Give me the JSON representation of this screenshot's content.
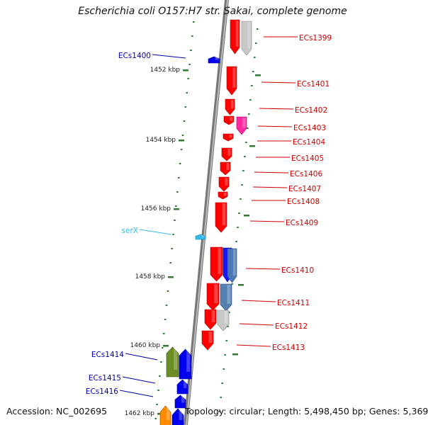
{
  "title": "Escherichia coli O157:H7 str. Sakai, complete genome",
  "footer": {
    "accession": "Accession: NC_002695",
    "summary": "Topology: circular; Length: 5,498,450 bp; Genes: 5,369"
  },
  "colors": {
    "backbone": "#8a8a8a",
    "tick": "#2e7d32",
    "cds_forward": "#ff0000",
    "cds_reverse": "#0000ee",
    "gc": "#2e7d32"
  },
  "scale_labels": [
    {
      "kbp": 1452,
      "text": "1452 kbp"
    },
    {
      "kbp": 1454,
      "text": "1454 kbp"
    },
    {
      "kbp": 1456,
      "text": "1456 kbp"
    },
    {
      "kbp": 1458,
      "text": "1458 kbp"
    },
    {
      "kbp": 1460,
      "text": "1460 kbp"
    },
    {
      "kbp": 1462,
      "text": "1462 kbp"
    }
  ],
  "genes": [
    {
      "label": "ECs1399",
      "color": "#cc0000",
      "side": "right"
    },
    {
      "label": "ECs1400",
      "color": "#0000aa",
      "side": "left"
    },
    {
      "label": "ECs1401",
      "color": "#cc0000",
      "side": "right"
    },
    {
      "label": "ECs1402",
      "color": "#cc0000",
      "side": "right"
    },
    {
      "label": "ECs1403",
      "color": "#cc0000",
      "side": "right"
    },
    {
      "label": "ECs1404",
      "color": "#cc0000",
      "side": "right"
    },
    {
      "label": "ECs1405",
      "color": "#cc0000",
      "side": "right"
    },
    {
      "label": "ECs1406",
      "color": "#cc0000",
      "side": "right"
    },
    {
      "label": "ECs1407",
      "color": "#cc0000",
      "side": "right"
    },
    {
      "label": "ECs1408",
      "color": "#cc0000",
      "side": "right"
    },
    {
      "label": "ECs1409",
      "color": "#cc0000",
      "side": "right"
    },
    {
      "label": "serX",
      "color": "#33bbee",
      "side": "left"
    },
    {
      "label": "ECs1410",
      "color": "#cc0000",
      "side": "right"
    },
    {
      "label": "ECs1411",
      "color": "#cc0000",
      "side": "right"
    },
    {
      "label": "ECs1412",
      "color": "#cc0000",
      "side": "right"
    },
    {
      "label": "ECs1413",
      "color": "#cc0000",
      "side": "right"
    },
    {
      "label": "ECs1414",
      "color": "#0000aa",
      "side": "left"
    },
    {
      "label": "ECs1415",
      "color": "#0000aa",
      "side": "left"
    },
    {
      "label": "ECs1416",
      "color": "#0000aa",
      "side": "left"
    }
  ]
}
